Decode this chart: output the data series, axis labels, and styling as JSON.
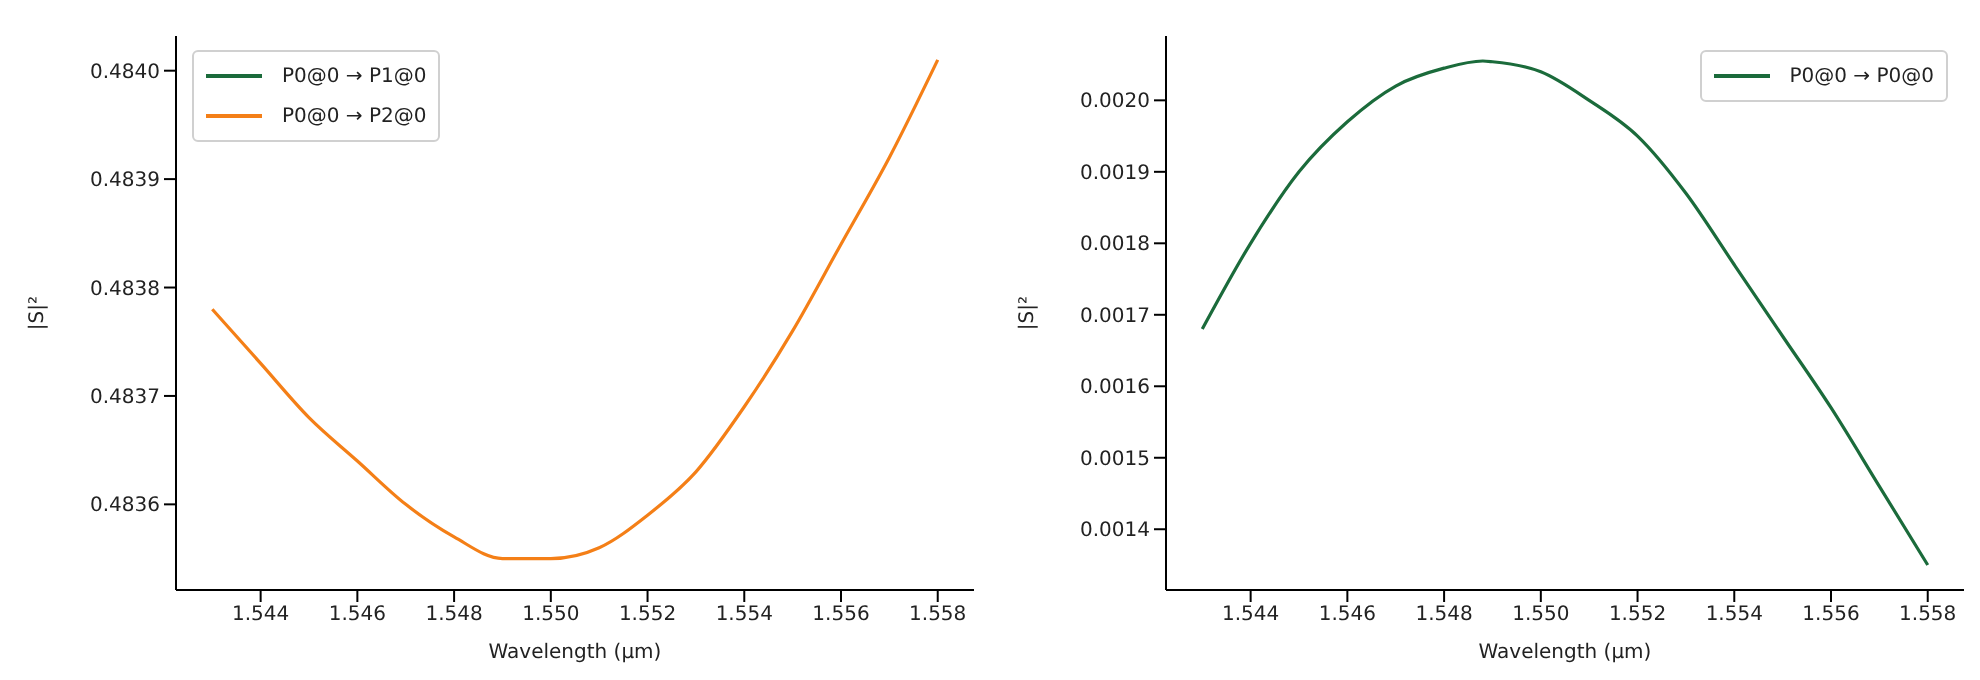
{
  "chart_data": [
    {
      "type": "line",
      "xlabel": "Wavelength (µm)",
      "ylabel": "|S|²",
      "legend": "top left",
      "grid": false,
      "marker": "none",
      "line_style": "solid",
      "xlim": [
        1.54225,
        1.55875
      ],
      "ylim": [
        0.483521,
        0.484032
      ],
      "xticks": [
        1.544,
        1.546,
        1.548,
        {
          "value": 1.55,
          "label": "1.550"
        },
        1.552,
        1.554,
        1.556,
        1.558
      ],
      "yticks": [
        0.4836,
        0.4837,
        0.4838,
        0.4839,
        {
          "value": 0.484,
          "label": "0.4840"
        }
      ],
      "series": [
        {
          "name": "P0@0 → P1@0",
          "color": "#1b6b3b",
          "values": [
            null,
            null,
            null,
            null,
            null,
            null,
            null,
            null,
            null,
            null,
            null,
            null,
            null,
            null,
            null,
            null,
            null
          ]
        },
        {
          "name": "P0@0 → P2@0",
          "color": "#f47f17",
          "x": [
            1.543,
            1.544,
            1.545,
            1.546,
            1.547,
            1.548,
            1.549,
            1.5495,
            1.55,
            1.551,
            1.552,
            1.553,
            1.554,
            1.555,
            1.556,
            1.557,
            1.558
          ],
          "values": [
            0.48378,
            0.48373,
            0.48368,
            0.48364,
            0.4836,
            0.48357,
            0.48355,
            0.48355,
            0.48355,
            0.48356,
            0.48359,
            0.48363,
            0.48369,
            0.48376,
            0.48384,
            0.48392,
            0.48401
          ]
        }
      ]
    },
    {
      "type": "line",
      "xlabel": "Wavelength (µm)",
      "ylabel": "|S|²",
      "legend": "top right",
      "grid": false,
      "marker": "none",
      "line_style": "solid",
      "xlim": [
        1.54225,
        1.55875
      ],
      "ylim": [
        0.001315,
        0.00209
      ],
      "xticks": [
        1.544,
        1.546,
        1.548,
        {
          "value": 1.55,
          "label": "1.550"
        },
        1.552,
        1.554,
        1.556,
        1.558
      ],
      "yticks": [
        0.0014,
        0.0015,
        0.0016,
        0.0017,
        0.0018,
        0.0019,
        {
          "value": 0.002,
          "label": "0.0020"
        }
      ],
      "series": [
        {
          "name": "P0@0 → P0@0",
          "color": "#1b6b3b",
          "x": [
            1.543,
            1.544,
            1.545,
            1.546,
            1.547,
            1.548,
            1.5488,
            1.549,
            1.55,
            1.551,
            1.552,
            1.553,
            1.554,
            1.555,
            1.556,
            1.557,
            1.558
          ],
          "values": [
            0.00168,
            0.0018,
            0.0019,
            0.00197,
            0.00202,
            0.002045,
            0.002055,
            0.002054,
            0.00204,
            0.002,
            0.00195,
            0.00187,
            0.00177,
            0.00167,
            0.00157,
            0.00146,
            0.00135
          ]
        }
      ]
    }
  ]
}
